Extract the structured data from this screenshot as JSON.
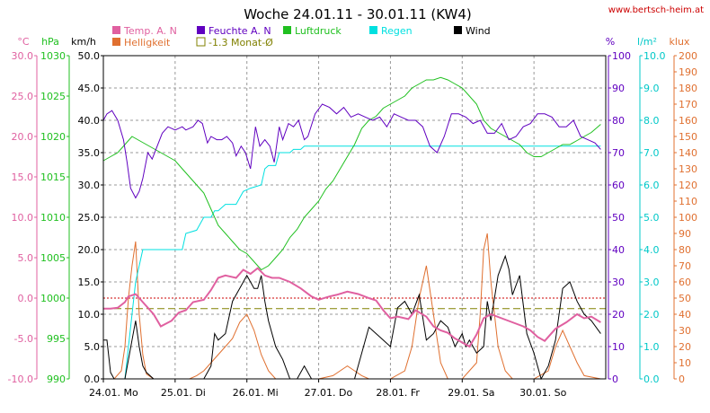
{
  "chart_data": {
    "type": "line",
    "title": "Woche 24.01.11 - 30.01.11 (KW4)",
    "source": "www.bertsch-heim.at",
    "x_ticks": [
      "24.01. Mo",
      "25.01. Di",
      "26.01. Mi",
      "27.01. Do",
      "28.01. Fr",
      "29.01. Sa",
      "30.01. So"
    ],
    "axes": {
      "temp": {
        "unit": "°C",
        "color": "#e060a0",
        "range": [
          -10,
          30
        ],
        "ticks": [
          "-10.0",
          "-5.0",
          "0.0",
          "5.0",
          "10.0",
          "15.0",
          "20.0",
          "25.0",
          "30.0"
        ]
      },
      "press": {
        "unit": "hPa",
        "color": "#20c020",
        "range": [
          990,
          1030
        ],
        "ticks": [
          "990",
          "995",
          "1000",
          "1005",
          "1010",
          "1015",
          "1020",
          "1025",
          "1030"
        ]
      },
      "wind": {
        "unit": "km/h",
        "color": "#000000",
        "range": [
          0,
          50
        ],
        "ticks": [
          "0.0",
          "5.0",
          "10.0",
          "15.0",
          "20.0",
          "25.0",
          "30.0",
          "35.0",
          "40.0",
          "45.0",
          "50.0"
        ]
      },
      "hum": {
        "unit": "%",
        "color": "#6000c0",
        "range": [
          0,
          100
        ],
        "ticks": [
          "0",
          "10",
          "20",
          "30",
          "40",
          "50",
          "60",
          "70",
          "80",
          "90",
          "100"
        ]
      },
      "rain": {
        "unit": "l/m²",
        "color": "#00c8c8",
        "range": [
          0,
          10
        ],
        "ticks": [
          "0.0",
          "1.0",
          "2.0",
          "3.0",
          "4.0",
          "5.0",
          "6.0",
          "7.0",
          "8.0",
          "9.0",
          "10.0"
        ]
      },
      "lux": {
        "unit": "klux",
        "color": "#e07030",
        "range": [
          0,
          200
        ],
        "ticks": [
          "0",
          "10",
          "20",
          "30",
          "40",
          "50",
          "60",
          "70",
          "80",
          "90",
          "100",
          "110",
          "120",
          "130",
          "140",
          "150",
          "160",
          "170",
          "180",
          "190",
          "200"
        ]
      }
    },
    "legend": [
      {
        "label": "Temp. A. N",
        "color": "#e060a0",
        "kind": "box"
      },
      {
        "label": "Feuchte A. N",
        "color": "#6000c0",
        "kind": "box"
      },
      {
        "label": "Luftdruck",
        "color": "#20c020",
        "kind": "box"
      },
      {
        "label": "Regen",
        "color": "#00e0e0",
        "kind": "box"
      },
      {
        "label": "Wind",
        "color": "#000000",
        "kind": "box"
      },
      {
        "label": "Helligkeit",
        "color": "#e07030",
        "kind": "box"
      },
      {
        "label": "-1.3 Monat-Ø",
        "color": "#808000",
        "kind": "outline"
      }
    ],
    "reference_lines": [
      {
        "axis": "temp",
        "value": 0,
        "color": "#cc0000",
        "style": "dotted"
      },
      {
        "axis": "temp",
        "value": -1.3,
        "color": "#808000",
        "style": "dashed"
      }
    ],
    "series": [
      {
        "name": "Temp. A. N",
        "axis": "temp",
        "color": "#e060a0",
        "x": [
          0,
          0.1,
          0.2,
          0.3,
          0.35,
          0.45,
          0.55,
          0.7,
          0.8,
          0.95,
          1.05,
          1.15,
          1.25,
          1.4,
          1.5,
          1.6,
          1.7,
          1.85,
          1.95,
          2.05,
          2.15,
          2.25,
          2.35,
          2.45,
          2.6,
          2.75,
          2.9,
          3.0,
          3.15,
          3.25,
          3.4,
          3.55,
          3.7,
          3.8,
          3.9,
          4.0,
          4.1,
          4.25,
          4.35,
          4.5,
          4.6,
          4.7,
          4.8,
          4.9,
          5.0,
          5.1,
          5.2,
          5.3,
          5.4,
          5.55,
          5.7,
          5.85,
          5.95,
          6.05,
          6.15,
          6.3,
          6.45,
          6.6,
          6.7,
          6.8,
          6.93
        ],
        "y": [
          -1.3,
          -1.3,
          -1.2,
          -0.5,
          0.2,
          0.5,
          -0.5,
          -2.0,
          -3.5,
          -2.8,
          -1.8,
          -1.5,
          -0.5,
          -0.2,
          1.0,
          2.5,
          2.8,
          2.5,
          3.5,
          3.0,
          3.7,
          2.8,
          2.5,
          2.5,
          2.0,
          1.2,
          0.2,
          -0.2,
          0.2,
          0.4,
          0.8,
          0.5,
          0.0,
          -0.3,
          -1.5,
          -2.5,
          -2.3,
          -2.6,
          -1.5,
          -2.3,
          -3.5,
          -4.0,
          -4.3,
          -5.0,
          -5.5,
          -6.0,
          -4.5,
          -2.5,
          -2.0,
          -2.5,
          -3.0,
          -3.5,
          -4.0,
          -4.8,
          -5.3,
          -3.8,
          -3.0,
          -2.0,
          -2.5,
          -2.3,
          -3.0
        ]
      },
      {
        "name": "Feuchte A. N",
        "axis": "hum",
        "color": "#6000c0",
        "x": [
          0,
          0.05,
          0.12,
          0.2,
          0.28,
          0.33,
          0.38,
          0.45,
          0.5,
          0.55,
          0.62,
          0.68,
          0.75,
          0.82,
          0.9,
          1.0,
          1.1,
          1.15,
          1.25,
          1.32,
          1.38,
          1.45,
          1.5,
          1.58,
          1.65,
          1.72,
          1.8,
          1.85,
          1.92,
          1.98,
          2.05,
          2.12,
          2.18,
          2.25,
          2.32,
          2.38,
          2.45,
          2.5,
          2.58,
          2.65,
          2.72,
          2.8,
          2.85,
          2.95,
          3.05,
          3.15,
          3.25,
          3.35,
          3.45,
          3.55,
          3.65,
          3.75,
          3.85,
          3.95,
          4.05,
          4.15,
          4.25,
          4.35,
          4.45,
          4.55,
          4.65,
          4.75,
          4.85,
          4.95,
          5.05,
          5.15,
          5.25,
          5.35,
          5.45,
          5.55,
          5.65,
          5.75,
          5.85,
          5.95,
          6.05,
          6.15,
          6.25,
          6.35,
          6.45,
          6.55,
          6.65,
          6.75,
          6.85,
          6.93
        ],
        "y": [
          80,
          82,
          83,
          80,
          74,
          67,
          59,
          56,
          58,
          62,
          70,
          68,
          72,
          76,
          78,
          77,
          78,
          77,
          78,
          80,
          79,
          73,
          75,
          74,
          74,
          75,
          73,
          69,
          72,
          70,
          65,
          78,
          72,
          74,
          72,
          67,
          78,
          74,
          79,
          78,
          80,
          74,
          75,
          82,
          85,
          84,
          82,
          84,
          81,
          82,
          81,
          80,
          81,
          78,
          82,
          81,
          80,
          80,
          78,
          72,
          70,
          75,
          82,
          82,
          81,
          79,
          80,
          76,
          76,
          79,
          74,
          75,
          78,
          79,
          82,
          82,
          81,
          78,
          78,
          80,
          75,
          74,
          73,
          71
        ]
      },
      {
        "name": "Luftdruck",
        "axis": "press",
        "color": "#20c020",
        "x": [
          0,
          0.1,
          0.2,
          0.3,
          0.4,
          0.5,
          0.6,
          0.7,
          0.8,
          0.9,
          1.0,
          1.1,
          1.2,
          1.3,
          1.4,
          1.5,
          1.6,
          1.7,
          1.8,
          1.9,
          2.0,
          2.1,
          2.2,
          2.3,
          2.4,
          2.5,
          2.6,
          2.7,
          2.8,
          2.9,
          3.0,
          3.1,
          3.2,
          3.3,
          3.4,
          3.5,
          3.6,
          3.7,
          3.8,
          3.9,
          4.0,
          4.1,
          4.2,
          4.3,
          4.4,
          4.5,
          4.6,
          4.7,
          4.8,
          4.9,
          5.0,
          5.1,
          5.2,
          5.3,
          5.4,
          5.5,
          5.6,
          5.7,
          5.8,
          5.9,
          6.0,
          6.1,
          6.2,
          6.3,
          6.4,
          6.5,
          6.6,
          6.7,
          6.8,
          6.93
        ],
        "y": [
          1017,
          1017.5,
          1018,
          1019,
          1020,
          1019.5,
          1019,
          1018.5,
          1018,
          1017.5,
          1017,
          1016,
          1015,
          1014,
          1013,
          1011,
          1009,
          1008,
          1007,
          1006,
          1005.5,
          1004.5,
          1003.5,
          1004,
          1005,
          1006,
          1007.5,
          1008.5,
          1010,
          1011,
          1012,
          1013.5,
          1014.5,
          1016,
          1017.5,
          1019,
          1021,
          1022,
          1022.5,
          1023.5,
          1024,
          1024.5,
          1025,
          1026,
          1026.5,
          1027,
          1027,
          1027.3,
          1027,
          1026.5,
          1026,
          1025,
          1024,
          1022,
          1021,
          1020.5,
          1020,
          1019.5,
          1019,
          1018,
          1017.5,
          1017.5,
          1018,
          1018.5,
          1019,
          1019,
          1019.5,
          1020,
          1020.5,
          1021.5
        ]
      },
      {
        "name": "Regen",
        "axis": "rain",
        "color": "#00e0e0",
        "x": [
          0,
          0.3,
          0.4,
          0.45,
          0.5,
          0.55,
          0.6,
          1.1,
          1.15,
          1.3,
          1.4,
          1.5,
          1.55,
          1.6,
          1.7,
          1.85,
          1.9,
          1.95,
          2.05,
          2.2,
          2.25,
          2.3,
          2.4,
          2.45,
          2.6,
          2.65,
          2.75,
          2.8,
          2.85,
          3.5,
          4.0,
          5.0,
          6.0,
          6.93
        ],
        "y": [
          0,
          0,
          2.0,
          3.0,
          3.5,
          4.0,
          4.0,
          4.0,
          4.5,
          4.6,
          5.0,
          5.0,
          5.2,
          5.2,
          5.4,
          5.4,
          5.6,
          5.8,
          5.9,
          6.0,
          6.5,
          6.6,
          6.6,
          7.0,
          7.0,
          7.1,
          7.1,
          7.2,
          7.2,
          7.2,
          7.2,
          7.2,
          7.2,
          7.2
        ]
      },
      {
        "name": "Wind",
        "axis": "wind",
        "color": "#000000",
        "x": [
          0,
          0.05,
          0.1,
          0.15,
          0.2,
          0.3,
          0.4,
          0.45,
          0.5,
          0.55,
          0.6,
          0.7,
          0.8,
          0.9,
          1.0,
          1.1,
          1.2,
          1.3,
          1.4,
          1.5,
          1.55,
          1.6,
          1.7,
          1.8,
          1.85,
          1.9,
          2.0,
          2.05,
          2.1,
          2.15,
          2.2,
          2.25,
          2.3,
          2.4,
          2.5,
          2.6,
          2.7,
          2.8,
          2.9,
          3.0,
          3.1,
          3.2,
          3.3,
          3.4,
          3.5,
          3.6,
          3.7,
          3.8,
          3.9,
          4.0,
          4.1,
          4.2,
          4.3,
          4.4,
          4.5,
          4.6,
          4.7,
          4.8,
          4.9,
          5.0,
          5.05,
          5.1,
          5.2,
          5.3,
          5.35,
          5.4,
          5.5,
          5.6,
          5.65,
          5.7,
          5.8,
          5.9,
          6.0,
          6.1,
          6.2,
          6.3,
          6.4,
          6.5,
          6.6,
          6.7,
          6.8,
          6.93
        ],
        "y": [
          6,
          6,
          1,
          0,
          0,
          0,
          6,
          9,
          5,
          2,
          1,
          0,
          0,
          0,
          0,
          0,
          0,
          0,
          0,
          2,
          7,
          6,
          7,
          12,
          13,
          14,
          16,
          15,
          14,
          14,
          16,
          12,
          9,
          5,
          3,
          0,
          0,
          2,
          0,
          0,
          0,
          0,
          0,
          0,
          0,
          4,
          8,
          7,
          6,
          5,
          11,
          12,
          10,
          13,
          6,
          7,
          9,
          8,
          5,
          7,
          5,
          6,
          4,
          5,
          12,
          9,
          16,
          19,
          17,
          13,
          16,
          7,
          4,
          0,
          2,
          6,
          14,
          15,
          12,
          10,
          9,
          7
        ]
      },
      {
        "name": "Helligkeit",
        "axis": "lux",
        "color": "#e07030",
        "x": [
          0,
          0.15,
          0.25,
          0.3,
          0.35,
          0.4,
          0.45,
          0.5,
          0.55,
          0.6,
          0.7,
          0.8,
          0.9,
          1.0,
          1.2,
          1.3,
          1.4,
          1.5,
          1.6,
          1.7,
          1.8,
          1.9,
          2.0,
          2.1,
          2.2,
          2.3,
          2.4,
          2.5,
          3.0,
          3.2,
          3.3,
          3.4,
          3.5,
          3.6,
          3.7,
          3.8,
          4.0,
          4.2,
          4.3,
          4.4,
          4.5,
          4.6,
          4.7,
          4.8,
          5.0,
          5.2,
          5.25,
          5.3,
          5.35,
          5.4,
          5.5,
          5.6,
          5.7,
          5.8,
          6.0,
          6.2,
          6.3,
          6.4,
          6.5,
          6.6,
          6.7,
          6.93
        ],
        "y": [
          0,
          0,
          5,
          20,
          50,
          70,
          85,
          40,
          15,
          3,
          0,
          0,
          0,
          0,
          0,
          2,
          5,
          10,
          15,
          20,
          25,
          35,
          40,
          30,
          15,
          5,
          0,
          0,
          0,
          2,
          5,
          8,
          5,
          2,
          0,
          0,
          0,
          5,
          20,
          50,
          70,
          40,
          10,
          0,
          0,
          10,
          40,
          80,
          90,
          60,
          20,
          5,
          0,
          0,
          0,
          5,
          20,
          30,
          20,
          10,
          2,
          0
        ]
      }
    ]
  }
}
